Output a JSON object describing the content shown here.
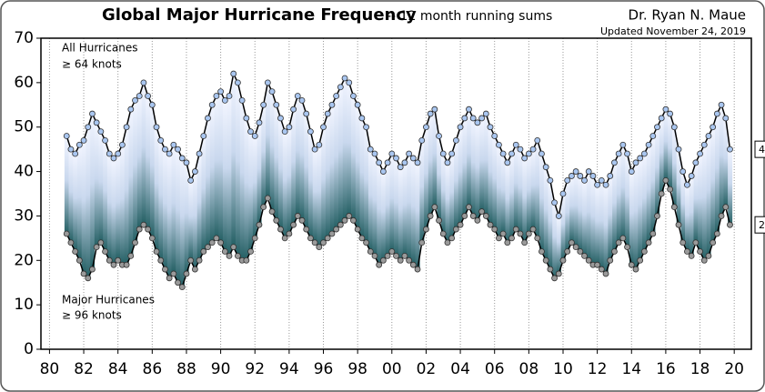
{
  "chart_data": {
    "type": "line",
    "title": "Global Major Hurricane Frequency",
    "subtitle": "-- 12 month running sums",
    "author": "Dr. Ryan N. Maue",
    "updated": "Updated November 24, 2019",
    "annotations": [
      {
        "text": "All Hurricanes"
      },
      {
        "text": "≥ 64 knots"
      },
      {
        "text": "Major Hurricanes"
      },
      {
        "text": "≥ 96 knots"
      }
    ],
    "x": [
      1981,
      1981.25,
      1981.5,
      1981.75,
      1982,
      1982.25,
      1982.5,
      1982.75,
      1983,
      1983.25,
      1983.5,
      1983.75,
      1984,
      1984.25,
      1984.5,
      1984.75,
      1985,
      1985.25,
      1985.5,
      1985.75,
      1986,
      1986.25,
      1986.5,
      1986.75,
      1987,
      1987.25,
      1987.5,
      1987.75,
      1988,
      1988.25,
      1988.5,
      1988.75,
      1989,
      1989.25,
      1989.5,
      1989.75,
      1990,
      1990.25,
      1990.5,
      1990.75,
      1991,
      1991.25,
      1991.5,
      1991.75,
      1992,
      1992.25,
      1992.5,
      1992.75,
      1993,
      1993.25,
      1993.5,
      1993.75,
      1994,
      1994.25,
      1994.5,
      1994.75,
      1995,
      1995.25,
      1995.5,
      1995.75,
      1996,
      1996.25,
      1996.5,
      1996.75,
      1997,
      1997.25,
      1997.5,
      1997.75,
      1998,
      1998.25,
      1998.5,
      1998.75,
      1999,
      1999.25,
      1999.5,
      1999.75,
      2000,
      2000.25,
      2000.5,
      2000.75,
      2001,
      2001.25,
      2001.5,
      2001.75,
      2002,
      2002.25,
      2002.5,
      2002.75,
      2003,
      2003.25,
      2003.5,
      2003.75,
      2004,
      2004.25,
      2004.5,
      2004.75,
      2005,
      2005.25,
      2005.5,
      2005.75,
      2006,
      2006.25,
      2006.5,
      2006.75,
      2007,
      2007.25,
      2007.5,
      2007.75,
      2008,
      2008.25,
      2008.5,
      2008.75,
      2009,
      2009.25,
      2009.5,
      2009.75,
      2010,
      2010.25,
      2010.5,
      2010.75,
      2011,
      2011.25,
      2011.5,
      2011.75,
      2012,
      2012.25,
      2012.5,
      2012.75,
      2013,
      2013.25,
      2013.5,
      2013.75,
      2014,
      2014.25,
      2014.5,
      2014.75,
      2015,
      2015.25,
      2015.5,
      2015.75,
      2016,
      2016.25,
      2016.5,
      2016.75,
      2017,
      2017.25,
      2017.5,
      2017.75,
      2018,
      2018.25,
      2018.5,
      2018.75,
      2019,
      2019.25,
      2019.5,
      2019.75
    ],
    "series": [
      {
        "name": "All Hurricanes",
        "color": "#a9c6f0",
        "values": [
          48,
          45,
          44,
          46,
          47,
          50,
          53,
          51,
          49,
          47,
          44,
          43,
          44,
          46,
          50,
          54,
          56,
          57,
          60,
          57,
          55,
          50,
          47,
          45,
          44,
          46,
          45,
          43,
          42,
          38,
          40,
          44,
          48,
          52,
          55,
          57,
          58,
          56,
          57,
          62,
          60,
          56,
          52,
          49,
          48,
          51,
          55,
          60,
          58,
          55,
          52,
          49,
          50,
          54,
          57,
          56,
          53,
          49,
          45,
          46,
          50,
          53,
          55,
          57,
          59,
          61,
          60,
          57,
          55,
          52,
          50,
          45,
          44,
          42,
          40,
          42,
          44,
          43,
          41,
          42,
          44,
          43,
          42,
          47,
          50,
          53,
          54,
          48,
          44,
          42,
          44,
          47,
          50,
          52,
          54,
          52,
          51,
          52,
          53,
          50,
          48,
          46,
          44,
          42,
          44,
          46,
          45,
          43,
          44,
          45,
          47,
          44,
          41,
          38,
          33,
          30,
          35,
          38,
          39,
          40,
          39,
          38,
          40,
          39,
          37,
          38,
          37,
          39,
          42,
          44,
          46,
          44,
          40,
          42,
          43,
          44,
          46,
          48,
          50,
          52,
          54,
          53,
          50,
          45,
          40,
          37,
          39,
          42,
          44,
          46,
          48,
          50,
          53,
          55,
          52,
          45
        ]
      },
      {
        "name": "Major Hurricanes",
        "color": "#9a9a9a",
        "values": [
          26,
          24,
          22,
          20,
          17,
          16,
          18,
          23,
          24,
          22,
          20,
          19,
          20,
          19,
          19,
          21,
          24,
          27,
          28,
          27,
          25,
          22,
          20,
          18,
          16,
          17,
          15,
          14,
          17,
          20,
          18,
          20,
          22,
          23,
          24,
          25,
          24,
          22,
          21,
          23,
          21,
          20,
          20,
          22,
          25,
          28,
          32,
          34,
          31,
          29,
          27,
          25,
          26,
          28,
          30,
          29,
          27,
          25,
          24,
          23,
          24,
          25,
          26,
          27,
          28,
          29,
          30,
          29,
          27,
          25,
          24,
          22,
          21,
          19,
          20,
          21,
          22,
          21,
          20,
          21,
          20,
          19,
          18,
          24,
          27,
          30,
          32,
          29,
          26,
          24,
          25,
          27,
          28,
          30,
          32,
          30,
          29,
          31,
          30,
          28,
          27,
          25,
          26,
          24,
          25,
          27,
          26,
          24,
          26,
          27,
          25,
          22,
          20,
          18,
          16,
          17,
          20,
          22,
          24,
          23,
          22,
          21,
          20,
          19,
          19,
          18,
          17,
          20,
          22,
          24,
          25,
          23,
          19,
          18,
          20,
          22,
          24,
          26,
          30,
          35,
          38,
          36,
          32,
          28,
          24,
          22,
          21,
          24,
          22,
          20,
          21,
          24,
          26,
          30,
          32,
          28
        ]
      }
    ],
    "xlim": [
      1979.5,
      2021
    ],
    "ylim": [
      0,
      70
    ],
    "yticks": [
      0,
      10,
      20,
      30,
      40,
      50,
      60,
      70
    ],
    "xticks": [
      {
        "value": 1980,
        "label": "80"
      },
      {
        "value": 1982,
        "label": "82"
      },
      {
        "value": 1984,
        "label": "84"
      },
      {
        "value": 1986,
        "label": "86"
      },
      {
        "value": 1988,
        "label": "88"
      },
      {
        "value": 1990,
        "label": "90"
      },
      {
        "value": 1992,
        "label": "92"
      },
      {
        "value": 1994,
        "label": "94"
      },
      {
        "value": 1996,
        "label": "96"
      },
      {
        "value": 1998,
        "label": "98"
      },
      {
        "value": 2000,
        "label": "00"
      },
      {
        "value": 2002,
        "label": "02"
      },
      {
        "value": 2004,
        "label": "04"
      },
      {
        "value": 2006,
        "label": "06"
      },
      {
        "value": 2008,
        "label": "08"
      },
      {
        "value": 2010,
        "label": "10"
      },
      {
        "value": 2012,
        "label": "12"
      },
      {
        "value": 2014,
        "label": "14"
      },
      {
        "value": 2016,
        "label": "16"
      },
      {
        "value": 2018,
        "label": "18"
      },
      {
        "value": 2020,
        "label": "20"
      }
    ],
    "grid": true
  }
}
